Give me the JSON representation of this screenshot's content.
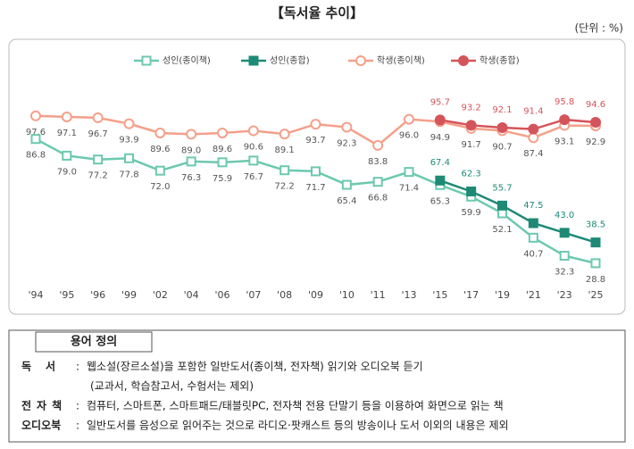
{
  "chart_data": {
    "type": "line",
    "title": "【독서율 추이】",
    "unit": "(단위 : %)",
    "categories": [
      "'94",
      "'95",
      "'96",
      "'99",
      "'02",
      "'04",
      "'06",
      "'07",
      "'08",
      "'09",
      "'10",
      "'11",
      "'13",
      "'15",
      "'17",
      "'19",
      "'21",
      "'23",
      "'25"
    ],
    "series": [
      {
        "name": "성인(종이책)",
        "color": "#6cc9ad",
        "marker": "square-open",
        "values": [
          86.8,
          79.0,
          77.2,
          77.8,
          72.0,
          76.3,
          75.9,
          76.7,
          72.2,
          71.7,
          65.4,
          66.8,
          71.4,
          65.3,
          59.9,
          52.1,
          40.7,
          32.3,
          28.8
        ],
        "value_labels": [
          "86.8",
          "79.0",
          "77.2",
          "77.8",
          "72.0",
          "76.3",
          "75.9",
          "76.7",
          "72.2",
          "71.7",
          "65.4",
          "66.8",
          "71.4",
          "65.3",
          "59.9",
          "52.1",
          "40.7",
          "32.3",
          "28.8"
        ]
      },
      {
        "name": "성인(종합)",
        "color": "#1e8a76",
        "marker": "square",
        "values": [
          null,
          null,
          null,
          null,
          null,
          null,
          null,
          null,
          null,
          null,
          null,
          null,
          null,
          67.4,
          62.3,
          55.7,
          47.5,
          43.0,
          38.5
        ],
        "value_labels": [
          null,
          null,
          null,
          null,
          null,
          null,
          null,
          null,
          null,
          null,
          null,
          null,
          null,
          "67.4",
          "62.3",
          "55.7",
          "47.5",
          "43.0",
          "38.5"
        ]
      },
      {
        "name": "학생(종이책)",
        "color": "#f4a089",
        "marker": "circle-open",
        "values": [
          97.6,
          97.1,
          96.7,
          93.9,
          89.6,
          89.0,
          89.6,
          90.6,
          89.1,
          93.7,
          92.3,
          83.8,
          96.0,
          94.9,
          91.7,
          90.7,
          87.4,
          93.1,
          92.9
        ],
        "value_labels": [
          "97.6",
          "97.1",
          "96.7",
          "93.9",
          "89.6",
          "89.0",
          "89.6",
          "90.6",
          "89.1",
          "93.7",
          "92.3",
          "83.8",
          "96.0",
          "94.9",
          "91.7",
          "90.7",
          "87.4",
          "93.1",
          "92.9"
        ]
      },
      {
        "name": "학생(종합)",
        "color": "#d4545b",
        "marker": "circle",
        "values": [
          null,
          null,
          null,
          null,
          null,
          null,
          null,
          null,
          null,
          null,
          null,
          null,
          null,
          95.7,
          93.2,
          92.1,
          91.4,
          95.8,
          94.6
        ],
        "value_labels": [
          null,
          null,
          null,
          null,
          null,
          null,
          null,
          null,
          null,
          null,
          null,
          null,
          null,
          "95.7",
          "93.2",
          "92.1",
          "91.4",
          "95.8",
          "94.6"
        ]
      }
    ]
  },
  "definitions": {
    "title": "용어 정의",
    "rows": [
      {
        "term": "독서",
        "lines": [
          "웹소설(장르소설)을 포함한 일반도서(종이책, 전자책) 읽기와 오디오북 듣기",
          "(교과서, 학습참고서, 수험서는 제외)"
        ]
      },
      {
        "term": "전자책",
        "lines": [
          "컴퓨터, 스마트폰, 스마트패드/태블릿PC, 전자책 전용 단말기 등을 이용하여 화면으로 읽는 책"
        ]
      },
      {
        "term": "오디오북",
        "lines": [
          "일반도서를 음성으로 읽어주는 것으로 라디오·팟캐스트 등의 방송이나 도서 이외의 내용은 제외"
        ]
      }
    ]
  }
}
